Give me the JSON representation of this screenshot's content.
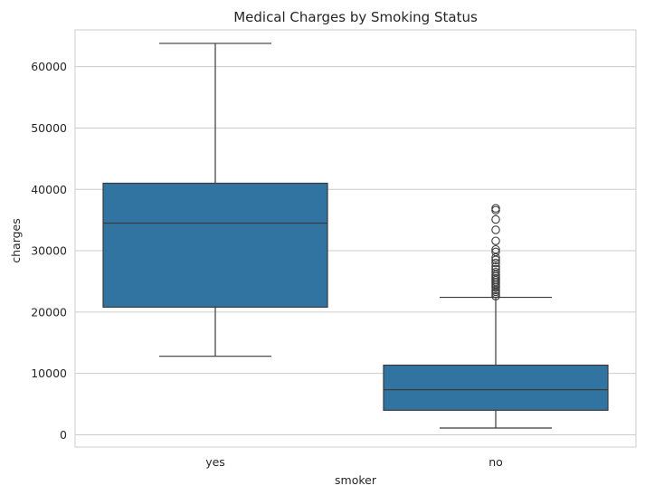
{
  "chart_data": {
    "type": "box",
    "title": "Medical Charges by Smoking Status",
    "xlabel": "smoker",
    "ylabel": "charges",
    "categories": [
      "yes",
      "no"
    ],
    "ylim": [
      -2000,
      66000
    ],
    "yticks": [
      0,
      10000,
      20000,
      30000,
      40000,
      50000,
      60000
    ],
    "ytick_labels": [
      "0",
      "10000",
      "20000",
      "30000",
      "40000",
      "50000",
      "60000"
    ],
    "grid": true,
    "color": "#3274a1",
    "boxes": [
      {
        "category": "yes",
        "whisker_low": 12800,
        "q1": 20800,
        "median": 34500,
        "q3": 41000,
        "whisker_high": 63800,
        "outliers": []
      },
      {
        "category": "no",
        "whisker_low": 1100,
        "q1": 4000,
        "median": 7350,
        "q3": 11350,
        "whisker_high": 22400,
        "outliers": [
          22600,
          23000,
          23300,
          23600,
          24000,
          24300,
          24600,
          24900,
          25200,
          25500,
          25800,
          26100,
          26500,
          27000,
          27400,
          28000,
          28500,
          28900,
          29800,
          30200,
          31600,
          33400,
          35100,
          36600,
          36900
        ]
      }
    ]
  }
}
